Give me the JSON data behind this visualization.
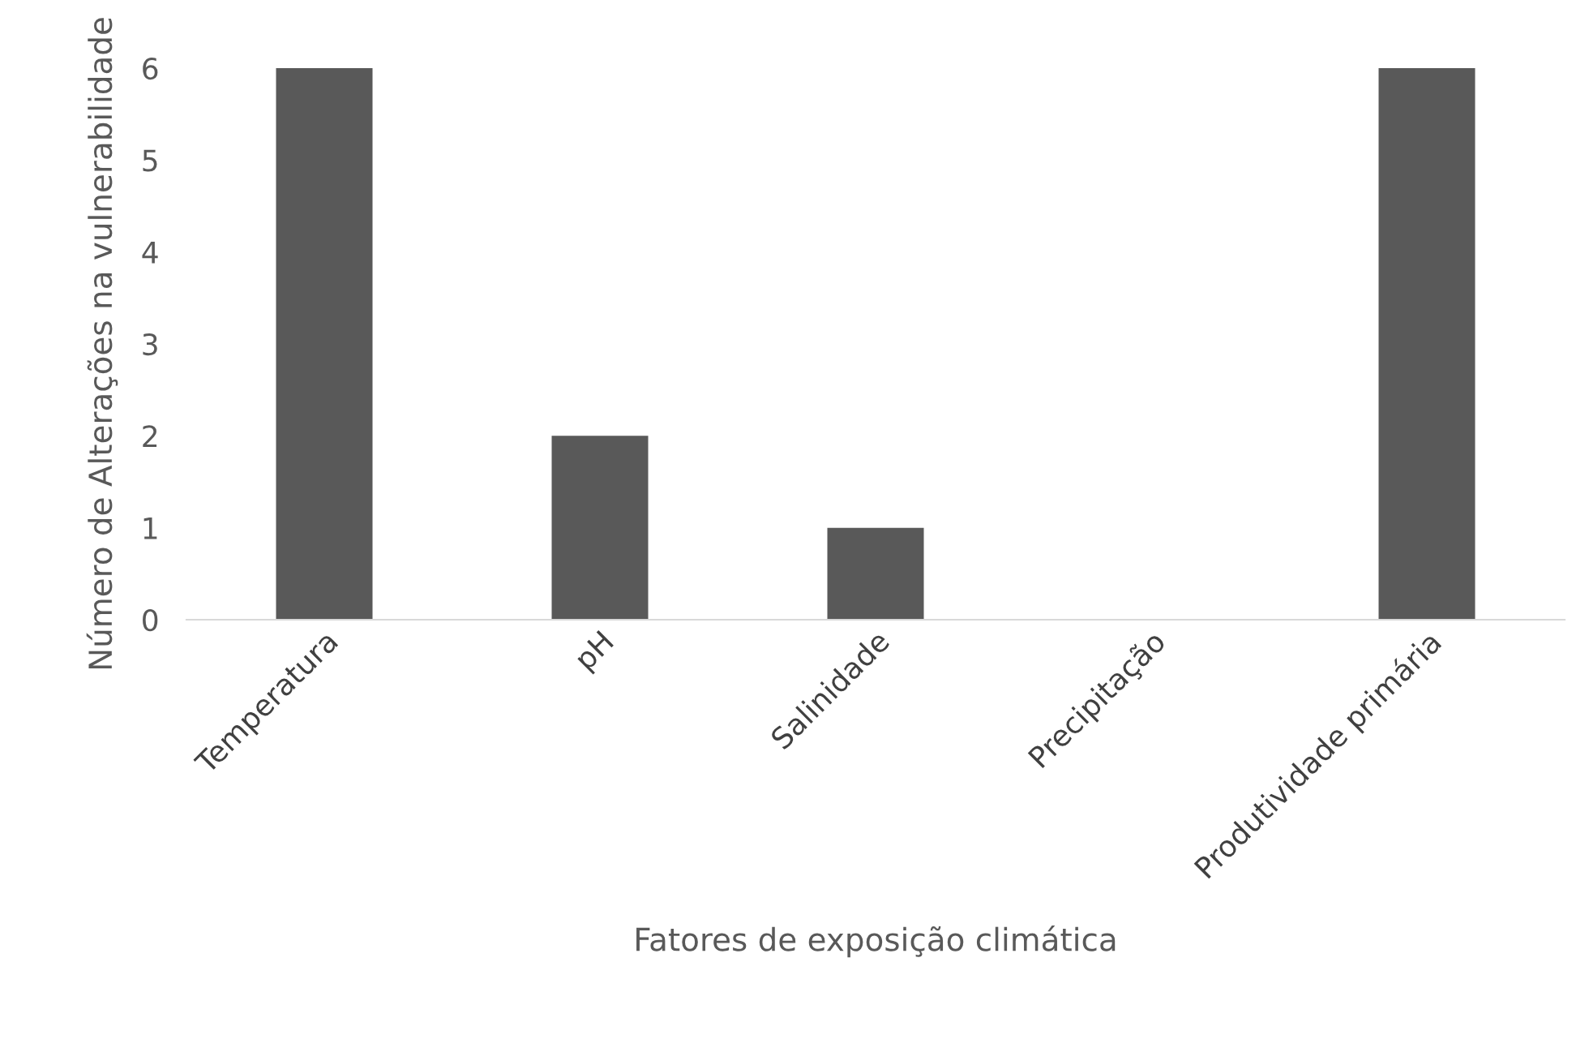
{
  "chart_data": {
    "type": "bar",
    "xlabel": "Fatores de exposição climática",
    "ylabel": "Número de Alterações na vulnerabilidade",
    "categories": [
      "Temperatura",
      "pH",
      "Salinidade",
      "Precipitação",
      "Produtividade primária"
    ],
    "values": [
      6,
      2,
      1,
      0,
      6
    ],
    "color": "#595959",
    "ylim": [
      0,
      6
    ],
    "yticks": [
      0,
      1,
      2,
      3,
      4,
      5,
      6
    ],
    "grid": false,
    "legend": false
  }
}
